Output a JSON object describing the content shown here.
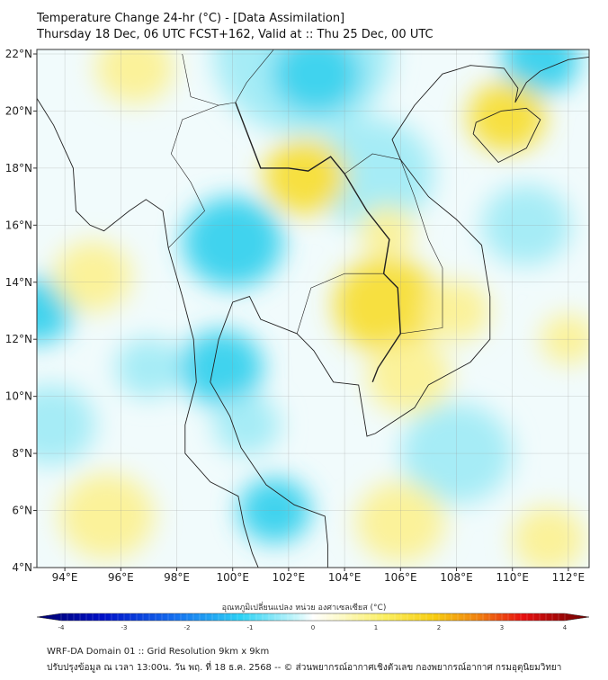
{
  "header": {
    "title": "Temperature Change 24-hr (°C) - [Data Assimilation]",
    "subtitle": "Thursday 18 Dec, 06 UTC FCST+162, Valid at :: Thu 25 Dec, 00 UTC"
  },
  "map": {
    "lon_range": [
      93,
      112.7
    ],
    "lat_range": [
      4,
      22.2
    ],
    "lon_ticks": [
      "94°E",
      "96°E",
      "98°E",
      "100°E",
      "102°E",
      "104°E",
      "106°E",
      "108°E",
      "110°E",
      "112°E"
    ],
    "lat_ticks": [
      "4°N",
      "6°N",
      "8°N",
      "10°N",
      "12°N",
      "14°N",
      "16°N",
      "18°N",
      "20°N",
      "22°N"
    ],
    "colors": {
      "warm": "#f7e040",
      "warm_light": "#fbf29a",
      "cool": "#3fd3ee",
      "cool_light": "#a6ecf6",
      "background": "#f1fbfc"
    }
  },
  "colorbar": {
    "label": "อุณหภูมิเปลี่ยนแปลง หน่วย องศาเซลเซียส (°C)",
    "ticks": [
      "-4",
      "-3",
      "-2",
      "-1",
      "0",
      "1",
      "2",
      "3",
      "4"
    ],
    "range": [
      -4,
      4
    ]
  },
  "footer": {
    "line1": "WRF-DA Domain 01 :: Grid Resolution 9km x 9km",
    "line2": "ปรับปรุงข้อมูล ณ เวลา 13:00น. วัน พฤ. ที่ 18 ธ.ค. 2568 -- © ส่วนพยากรณ์อากาศเชิงตัวเลข กองพยากรณ์อากาศ กรมอุตุนิยมวิทยา"
  }
}
